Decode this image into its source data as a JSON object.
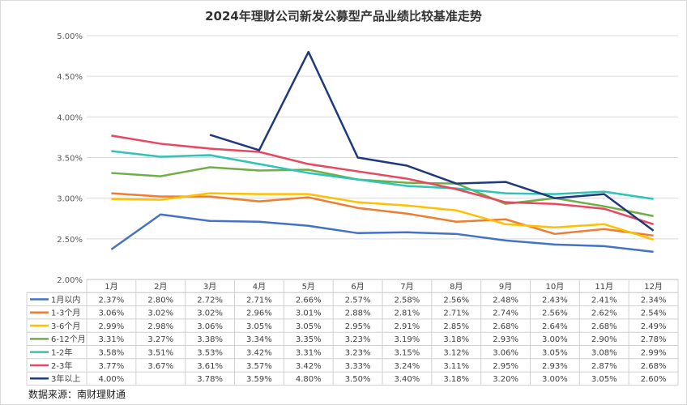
{
  "chart_data": {
    "type": "line",
    "title": "2024年理财公司新发公募型产品业绩比较基准走势",
    "categories": [
      "1月",
      "2月",
      "3月",
      "4月",
      "5月",
      "6月",
      "7月",
      "8月",
      "9月",
      "10月",
      "11月",
      "12月"
    ],
    "ylim": [
      2.0,
      5.0
    ],
    "yticks": [
      "2.00%",
      "2.50%",
      "3.00%",
      "3.50%",
      "4.00%",
      "4.50%",
      "5.00%"
    ],
    "grid": true,
    "legend": "data-table-below",
    "series": [
      {
        "name": "1月以内",
        "color": "#4472c4",
        "values": [
          2.37,
          2.8,
          2.72,
          2.71,
          2.66,
          2.57,
          2.58,
          2.56,
          2.48,
          2.43,
          2.41,
          2.34
        ]
      },
      {
        "name": "1-3个月",
        "color": "#ed7d31",
        "values": [
          3.06,
          3.02,
          3.02,
          2.96,
          3.01,
          2.88,
          2.81,
          2.71,
          2.74,
          2.56,
          2.62,
          2.54
        ]
      },
      {
        "name": "3-6个月",
        "color": "#ffc000",
        "values": [
          2.99,
          2.98,
          3.06,
          3.05,
          3.05,
          2.95,
          2.91,
          2.85,
          2.68,
          2.64,
          2.68,
          2.49
        ]
      },
      {
        "name": "6-12个月",
        "color": "#70ad47",
        "values": [
          3.31,
          3.27,
          3.38,
          3.34,
          3.35,
          3.23,
          3.19,
          3.18,
          2.93,
          3.0,
          2.9,
          2.78
        ]
      },
      {
        "name": "1-2年",
        "color": "#2ec4b6",
        "values": [
          3.58,
          3.51,
          3.53,
          3.42,
          3.31,
          3.23,
          3.15,
          3.12,
          3.06,
          3.05,
          3.08,
          2.99
        ]
      },
      {
        "name": "2-3年",
        "color": "#e8475f",
        "values": [
          3.77,
          3.67,
          3.61,
          3.57,
          3.42,
          3.33,
          3.24,
          3.11,
          2.95,
          2.93,
          2.87,
          2.68
        ]
      },
      {
        "name": "3年以上",
        "color": "#1f3a7a",
        "values": [
          4.0,
          null,
          3.78,
          3.59,
          4.8,
          3.5,
          3.4,
          3.18,
          3.2,
          3.0,
          3.05,
          2.6
        ]
      }
    ]
  },
  "source": "数据来源：南财理财通"
}
